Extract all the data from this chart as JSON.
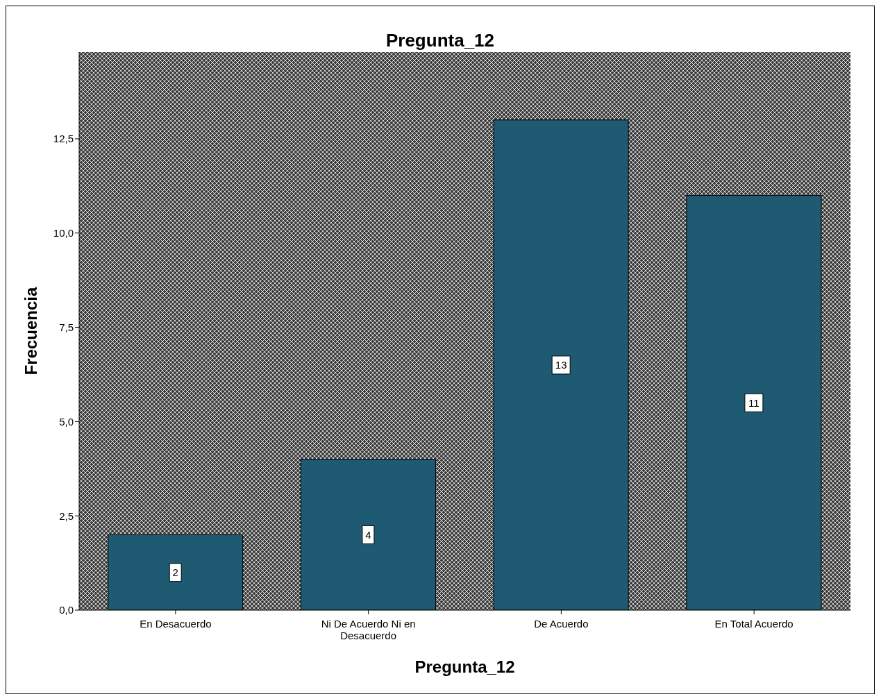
{
  "chart_data": {
    "type": "bar",
    "title": "Pregunta_12",
    "xlabel": "Pregunta_12",
    "ylabel": "Frecuencia",
    "categories": [
      "En Desacuerdo",
      "Ni De Acuerdo Ni en Desacuerdo",
      "De Acuerdo",
      "En Total Acuerdo"
    ],
    "values": [
      2,
      4,
      13,
      11
    ],
    "color": "#1f5a73",
    "data_labels": true,
    "ylim": [
      0,
      14.8
    ],
    "yticks": [
      {
        "value": 0,
        "label": "0,0"
      },
      {
        "value": 2.5,
        "label": "2,5"
      },
      {
        "value": 5,
        "label": "5,0"
      },
      {
        "value": 7.5,
        "label": "7,5"
      },
      {
        "value": 10,
        "label": "10,0"
      },
      {
        "value": 12.5,
        "label": "12,5"
      }
    ]
  }
}
